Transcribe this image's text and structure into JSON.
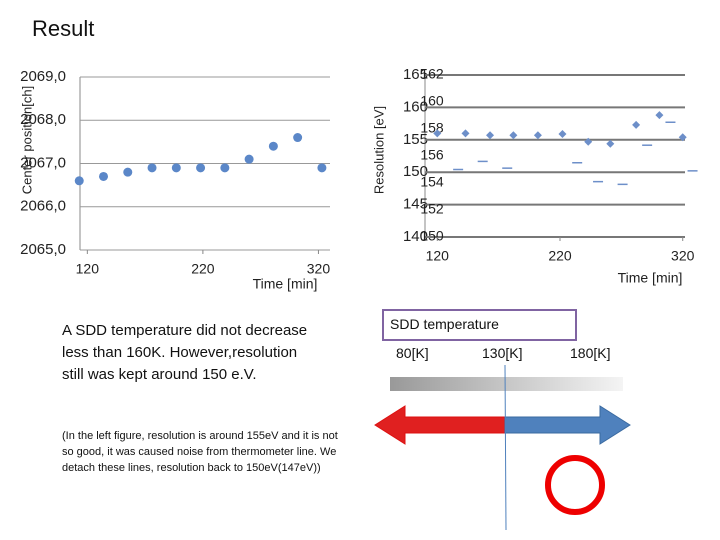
{
  "title": "Result",
  "chart_data": [
    {
      "type": "scatter",
      "y_label": "Center position[ch]",
      "x_label": "Time [min]",
      "color": "#5b87c8",
      "grid": true,
      "x": [
        113,
        134,
        155,
        176,
        197,
        218,
        239,
        260,
        281,
        302,
        323
      ],
      "values": [
        2066.6,
        2066.7,
        2066.8,
        2066.9,
        2066.9,
        2066.9,
        2066.9,
        2067.1,
        2067.4,
        2067.6,
        2066.9
      ],
      "xlim": [
        105,
        330
      ],
      "xticks": [
        120,
        220,
        320
      ],
      "ylim": [
        2065,
        2069
      ],
      "yticks": [
        {
          "value": 2065,
          "label": "2065,0"
        },
        {
          "value": 2066,
          "label": "2066,0"
        },
        {
          "value": 2067,
          "label": "2067,0"
        },
        {
          "value": 2068,
          "label": "2068,0"
        },
        {
          "value": 2069,
          "label": "2069,0"
        }
      ]
    },
    {
      "type": "scatter",
      "y_label": "Resolution [eV]",
      "x_label": "Time [min]",
      "grid": true,
      "series": [
        {
          "marker": "diamond",
          "color": "#6d8fc9",
          "x": [
            120,
            143,
            163,
            182,
            202,
            222,
            243,
            261,
            282,
            301,
            320
          ],
          "values": [
            156.0,
            156.0,
            155.7,
            155.7,
            155.7,
            155.9,
            154.7,
            154.4,
            157.3,
            158.8,
            155.4
          ]
        },
        {
          "marker": "dash",
          "color": "#6d8fc9",
          "axis": "y2",
          "x": [
            137,
            157,
            177,
            234,
            251,
            271,
            291,
            310,
            328
          ],
          "values": [
            155.0,
            155.6,
            155.1,
            155.5,
            154.1,
            153.9,
            156.8,
            158.5,
            154.9
          ]
        }
      ],
      "xlim": [
        110,
        330
      ],
      "xticks": [
        120,
        220,
        320
      ],
      "ylim": [
        140,
        165
      ],
      "yticks": [
        140,
        145,
        150,
        155,
        160,
        165
      ],
      "y2lim": [
        150,
        162
      ],
      "y2ticks": [
        150,
        152,
        154,
        156,
        158,
        160,
        162
      ]
    }
  ],
  "text": {
    "main": "A SDD temperature did not decrease less than 160K. However,resolution still was kept around 150 e.V.",
    "note": "(In the left figure, resolution is around 155eV and it is not so good, it was caused noise from thermometer line. We detach these lines, resolution back to 150eV(147eV))"
  },
  "temperature": {
    "title": "SDD temperature",
    "labels": [
      "80[K]",
      "130[K]",
      "180[K]"
    ]
  }
}
